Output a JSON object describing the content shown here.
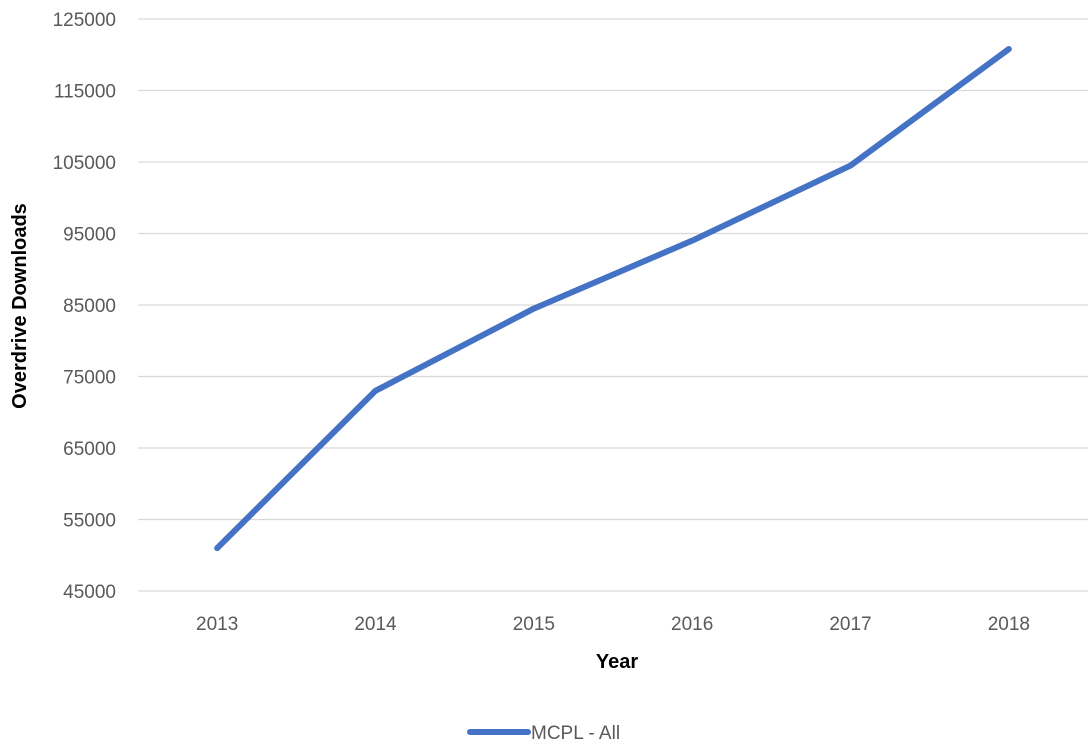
{
  "chart_data": {
    "type": "line",
    "title": "",
    "xlabel": "Year",
    "ylabel": "Overdrive Downloads",
    "categories": [
      "2013",
      "2014",
      "2015",
      "2016",
      "2017",
      "2018"
    ],
    "series": [
      {
        "name": "MCPL - All",
        "values": [
          51000,
          73000,
          84500,
          94000,
          104500,
          120800
        ],
        "color": "#4472c4"
      }
    ],
    "ylim": [
      45000,
      125000
    ],
    "yticks": [
      45000,
      55000,
      65000,
      75000,
      85000,
      95000,
      105000,
      115000,
      125000
    ],
    "ytick_labels": [
      "45000",
      "55000",
      "65000",
      "75000",
      "85000",
      "95000",
      "105000",
      "115000",
      "125000"
    ],
    "grid": true,
    "legend_position": "bottom"
  },
  "colors": {
    "gridline": "#d9d9d9",
    "tick_text": "#595959",
    "axis_title": "#000000"
  }
}
